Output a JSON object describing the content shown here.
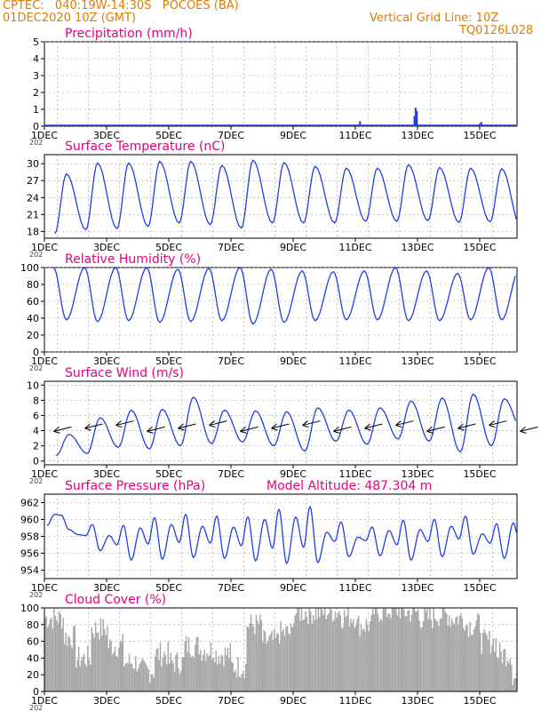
{
  "header": {
    "left_line1": "CPTEC:   040:19W-14:30S   POCOES (BA)",
    "left_line2": "01DEC2020 10Z (GMT)",
    "right_line1": "Vertical Grid Line: 10Z",
    "right_line2": "TQ0126L028"
  },
  "colors": {
    "header": "#e07b00",
    "panel_title": "#e6007e",
    "line": "#1f3fe0",
    "cloud": "#a8a8a8",
    "grid": "#9a9a9a"
  },
  "x_axis": {
    "range_days": [
      1,
      16.2
    ],
    "ticks": [
      {
        "day": 1,
        "label": "1DEC"
      },
      {
        "day": 3,
        "label": "3DEC"
      },
      {
        "day": 5,
        "label": "5DEC"
      },
      {
        "day": 7,
        "label": "7DEC"
      },
      {
        "day": 9,
        "label": "9DEC"
      },
      {
        "day": 11,
        "label": "11DEC"
      },
      {
        "day": 13,
        "label": "13DEC"
      },
      {
        "day": 15,
        "label": "15DEC"
      }
    ],
    "year_fragment": "202"
  },
  "chart_data": [
    {
      "type": "bar",
      "title": "Precipitation (mm/h)",
      "ylim": [
        0,
        5
      ],
      "yticks": [
        0,
        1,
        2,
        3,
        4,
        5
      ],
      "series": [
        {
          "points": [
            [
              11.1,
              0.1
            ],
            [
              11.15,
              0.3
            ],
            [
              12.9,
              0.6
            ],
            [
              12.94,
              1.1
            ],
            [
              12.98,
              0.9
            ],
            [
              15.0,
              0.15
            ],
            [
              15.05,
              0.25
            ]
          ]
        }
      ]
    },
    {
      "type": "line",
      "title": "Surface Temperature (nC)",
      "ylim": [
        16.8,
        31.6
      ],
      "yticks": [
        18,
        21,
        24,
        27,
        30
      ],
      "daily": {
        "t_min": [
          17.6,
          18.3,
          18.5,
          18.9,
          19.5,
          19.2,
          18.6,
          19.5,
          19.5,
          19.5,
          19.8,
          19.8,
          19.9,
          19.6,
          19.7,
          18.6
        ],
        "t_max": [
          28.2,
          30.1,
          30.1,
          30.4,
          30.4,
          29.7,
          30.6,
          30.2,
          29.5,
          29.2,
          29.2,
          29.8,
          29.3,
          29.2,
          29.1,
          29.8
        ]
      }
    },
    {
      "type": "line",
      "title": "Relative Humidity (%)",
      "ylim": [
        0,
        100
      ],
      "yticks": [
        0,
        20,
        40,
        60,
        80,
        100
      ],
      "daily": {
        "rh_min": [
          38,
          36,
          37,
          35,
          36,
          37,
          33,
          35,
          37,
          38,
          38,
          37,
          37,
          38,
          38,
          33
        ],
        "rh_max": [
          100,
          100,
          100,
          100,
          98,
          99,
          100,
          98,
          96,
          95,
          96,
          100,
          96,
          93,
          100,
          99
        ]
      }
    },
    {
      "type": "line",
      "title": "Surface Wind (m/s)",
      "ylim": [
        -0.5,
        10.5
      ],
      "yticks": [
        0,
        2,
        4,
        6,
        8,
        10
      ],
      "daily": {
        "speed_min": [
          0.7,
          1.0,
          1.8,
          1.6,
          2.0,
          2.3,
          2.5,
          2.0,
          1.3,
          2.6,
          2.2,
          2.9,
          2.6,
          1.2,
          2.0,
          4.0
        ],
        "speed_max": [
          3.5,
          5.7,
          6.7,
          6.8,
          8.4,
          6.7,
          6.6,
          6.5,
          7.0,
          6.7,
          7.0,
          7.9,
          8.3,
          8.8,
          8.2,
          9.0
        ]
      }
    },
    {
      "type": "line",
      "title": "Surface Pressure (hPa)",
      "annotation": "Model Altitude: 487.304 m",
      "ylim": [
        953.0,
        963.0
      ],
      "yticks": [
        954,
        956,
        958,
        960,
        962
      ],
      "daily": {
        "p_high": [
          960.5,
          959.4,
          959.3,
          960.2,
          960.6,
          960.4,
          960.3,
          961.2,
          961.5,
          959.7,
          959.1,
          959.9,
          960.0,
          960.4,
          959.5,
          960.8
        ],
        "p_low": [
          958.8,
          956.3,
          955.2,
          955.3,
          955.5,
          955.4,
          955.1,
          954.8,
          954.9,
          955.6,
          955.7,
          955.2,
          955.6,
          955.9,
          955.4,
          954.1
        ]
      }
    },
    {
      "type": "bar",
      "title": "Cloud Cover (%)",
      "ylim": [
        0,
        100
      ],
      "yticks": [
        0,
        20,
        40,
        60,
        80,
        100
      ],
      "segments": [
        [
          1.0,
          88
        ],
        [
          1.6,
          65
        ],
        [
          2.0,
          40
        ],
        [
          2.5,
          75
        ],
        [
          3.0,
          55
        ],
        [
          3.5,
          35
        ],
        [
          4.0,
          25
        ],
        [
          4.5,
          45
        ],
        [
          5.0,
          35
        ],
        [
          5.5,
          55
        ],
        [
          6.0,
          50
        ],
        [
          6.5,
          45
        ],
        [
          7.0,
          30
        ],
        [
          7.5,
          80
        ],
        [
          8.0,
          60
        ],
        [
          8.5,
          70
        ],
        [
          9.0,
          95
        ],
        [
          9.5,
          95
        ],
        [
          10.0,
          96
        ],
        [
          10.5,
          90
        ],
        [
          11.0,
          80
        ],
        [
          11.5,
          96
        ],
        [
          12.0,
          98
        ],
        [
          12.5,
          95
        ],
        [
          13.0,
          88
        ],
        [
          13.5,
          92
        ],
        [
          14.0,
          88
        ],
        [
          14.5,
          80
        ],
        [
          15.0,
          60
        ],
        [
          15.5,
          45
        ],
        [
          16.0,
          15
        ]
      ]
    }
  ]
}
